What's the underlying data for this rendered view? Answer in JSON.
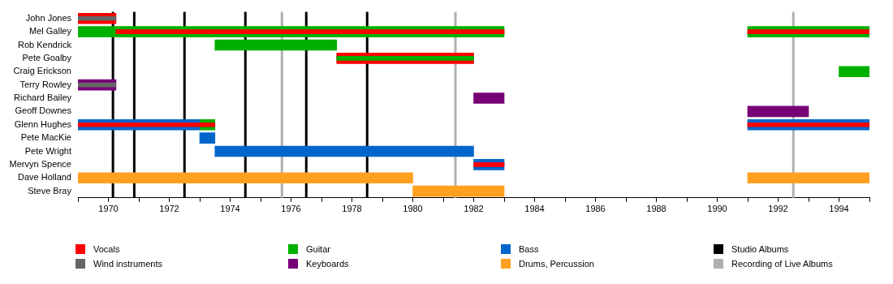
{
  "chart_data": {
    "type": "bar",
    "orientation": "horizontal",
    "legend": "bottom",
    "grid": false,
    "categories": [
      "John Jones",
      "Mel Galley",
      "Rob Kendrick",
      "Pete Goalby",
      "Craig Erickson",
      "Terry Rowley",
      "Richard Bailey",
      "Geoff Downes",
      "Glenn Hughes",
      "Pete MacKie",
      "Pete Wright",
      "Mervyn Spence",
      "Dave Holland",
      "Steve Bray"
    ],
    "xlim": [
      1969,
      1995
    ],
    "xticks": [
      {
        "value": 1969,
        "label": null
      },
      1970,
      {
        "value": 1971,
        "label": null
      },
      1972,
      {
        "value": 1973,
        "label": null
      },
      1974,
      {
        "value": 1975,
        "label": null
      },
      1976,
      {
        "value": 1977,
        "label": null
      },
      1978,
      {
        "value": 1979,
        "label": null
      },
      1980,
      {
        "value": 1981,
        "label": null
      },
      1982,
      {
        "value": 1983,
        "label": null
      },
      1984,
      {
        "value": 1985,
        "label": null
      },
      1986,
      {
        "value": 1987,
        "label": null
      },
      1988,
      {
        "value": 1989,
        "label": null
      },
      1990,
      {
        "value": 1991,
        "label": null
      },
      1992,
      {
        "value": 1993,
        "label": null
      },
      1994,
      {
        "value": 1995,
        "label": null
      }
    ],
    "series": [
      {
        "name": "Vocals",
        "color": "#ff0000",
        "base": [
          1969,
          null,
          null,
          1977.5,
          null,
          null,
          null,
          null,
          null,
          null,
          null,
          null,
          null,
          null
        ],
        "values": [
          1.25,
          null,
          null,
          4.5,
          null,
          null,
          null,
          null,
          null,
          null,
          null,
          null,
          null,
          null
        ]
      },
      {
        "name": "Wind instruments",
        "color": "#666666",
        "base": [
          1969,
          null,
          null,
          null,
          null,
          null,
          null,
          null,
          null,
          null,
          null,
          null,
          null,
          null
        ],
        "values": [
          1.25,
          null,
          null,
          null,
          null,
          null,
          null,
          null,
          null,
          null,
          null,
          null,
          null,
          null
        ]
      },
      {
        "name": "Guitar",
        "color": "#00b000",
        "base": [
          null,
          1969,
          1973.5,
          null,
          1994,
          null,
          null,
          null,
          1973,
          null,
          null,
          null,
          null,
          null
        ],
        "values": [
          null,
          14,
          4,
          null,
          1,
          null,
          null,
          null,
          0.5,
          null,
          null,
          null,
          null,
          null
        ]
      },
      {
        "name": "Keyboards",
        "color": "#770077",
        "base": [
          null,
          null,
          null,
          null,
          null,
          1969,
          1982,
          1991,
          null,
          null,
          null,
          null,
          null,
          null
        ],
        "values": [
          null,
          null,
          null,
          null,
          null,
          1.25,
          1,
          2,
          null,
          null,
          null,
          null,
          null,
          null
        ]
      },
      {
        "name": "Bass",
        "color": "#0066cc",
        "base": [
          null,
          null,
          null,
          null,
          null,
          null,
          null,
          null,
          1969,
          1973,
          1973.5,
          1982,
          null,
          null
        ],
        "values": [
          null,
          null,
          null,
          null,
          null,
          null,
          null,
          null,
          4,
          0.5,
          8.5,
          1,
          null,
          null
        ]
      },
      {
        "name": "Drums, Percussion",
        "color": "#ffa020",
        "base": [
          null,
          null,
          null,
          null,
          null,
          null,
          null,
          null,
          null,
          null,
          null,
          null,
          1969,
          1980
        ],
        "values": [
          null,
          null,
          null,
          null,
          null,
          null,
          null,
          null,
          null,
          null,
          null,
          null,
          11,
          3
        ]
      },
      {
        "color": "#00b000",
        "base": [
          null,
          1991,
          null,
          null,
          null,
          null,
          null,
          null,
          null,
          null,
          null,
          null,
          null,
          null
        ],
        "values": [
          null,
          4,
          null,
          null,
          null,
          null,
          null,
          null,
          null,
          null,
          null,
          null,
          null,
          null
        ]
      },
      {
        "color": "#0066cc",
        "base": [
          null,
          null,
          null,
          null,
          null,
          null,
          null,
          null,
          1991,
          null,
          null,
          null,
          null,
          null
        ],
        "values": [
          null,
          null,
          null,
          null,
          null,
          null,
          null,
          null,
          4,
          null,
          null,
          null,
          null,
          null
        ]
      },
      {
        "color": "#ffa020",
        "base": [
          null,
          null,
          null,
          null,
          null,
          null,
          null,
          null,
          null,
          null,
          null,
          null,
          1991,
          null
        ],
        "values": [
          null,
          null,
          null,
          null,
          null,
          null,
          null,
          null,
          null,
          null,
          null,
          null,
          4,
          null
        ]
      },
      {
        "color": "#ff0000",
        "base": [
          null,
          1970.25,
          null,
          null,
          null,
          null,
          null,
          null,
          1969,
          null,
          null,
          1982,
          null,
          null
        ],
        "values": [
          null,
          12.75,
          null,
          null,
          null,
          null,
          null,
          null,
          4.5,
          null,
          null,
          1,
          null,
          null
        ]
      },
      {
        "color": "#ff0000",
        "base": [
          null,
          1991,
          null,
          null,
          null,
          null,
          null,
          null,
          1991,
          null,
          null,
          null,
          null,
          null
        ],
        "values": [
          null,
          4,
          null,
          null,
          null,
          null,
          null,
          null,
          4,
          null,
          null,
          null,
          null,
          null
        ]
      },
      {
        "color": "#666666",
        "base": [
          null,
          null,
          null,
          null,
          null,
          1969,
          null,
          null,
          null,
          null,
          null,
          null,
          null,
          null
        ],
        "values": [
          null,
          null,
          null,
          null,
          null,
          1.25,
          null,
          null,
          null,
          null,
          null,
          null,
          null,
          null
        ]
      },
      {
        "color": "#00b000",
        "base": [
          null,
          null,
          null,
          1977.5,
          null,
          null,
          null,
          null,
          null,
          null,
          null,
          null,
          null,
          null
        ],
        "values": [
          null,
          null,
          null,
          4.5,
          null,
          null,
          null,
          null,
          null,
          null,
          null,
          null,
          null,
          null
        ]
      }
    ],
    "ref_lines": [
      {
        "axis": "x",
        "value": 1970.15,
        "label": "Studio Albums",
        "color": "#000000"
      },
      {
        "axis": "x",
        "value": 1970.85,
        "color": "#000000"
      },
      {
        "axis": "x",
        "value": 1972.5,
        "color": "#000000"
      },
      {
        "axis": "x",
        "value": 1974.5,
        "color": "#000000"
      },
      {
        "axis": "x",
        "value": 1976.5,
        "color": "#000000"
      },
      {
        "axis": "x",
        "value": 1978.5,
        "color": "#000000"
      },
      {
        "axis": "x",
        "value": 1975.7,
        "label": "Recording of Live Albums",
        "color": "#b0b0b0"
      },
      {
        "axis": "x",
        "value": 1981.4,
        "color": "#b0b0b0"
      },
      {
        "axis": "x",
        "value": 1992.5,
        "color": "#b0b0b0"
      }
    ]
  }
}
